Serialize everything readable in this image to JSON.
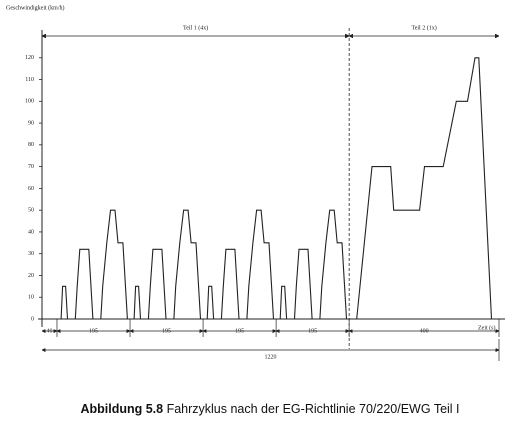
{
  "chart_data": {
    "type": "line",
    "y_label": "Geschwindigkeit (km/h)",
    "x_label": "Zeit (s)",
    "color": "#222222",
    "x": [
      0,
      40,
      51,
      55,
      63,
      68,
      89,
      94,
      101,
      125,
      136,
      157,
      162,
      173,
      183,
      195,
      203,
      216,
      228,
      235,
      246,
      250,
      258,
      263,
      284,
      289,
      296,
      320,
      331,
      352,
      357,
      368,
      378,
      390,
      398,
      411,
      423,
      430,
      441,
      445,
      453,
      458,
      479,
      484,
      491,
      515,
      526,
      547,
      552,
      563,
      573,
      585,
      593,
      606,
      618,
      625,
      636,
      640,
      648,
      653,
      674,
      679,
      686,
      710,
      721,
      742,
      747,
      758,
      768,
      780,
      788,
      801,
      813,
      820,
      840,
      881,
      931,
      939,
      1008,
      1021,
      1071,
      1106,
      1136,
      1156,
      1166,
      1200,
      1220
    ],
    "values": [
      0,
      0,
      0,
      15,
      15,
      0,
      0,
      15,
      32,
      32,
      0,
      0,
      15,
      35,
      50,
      50,
      35,
      35,
      0,
      0,
      0,
      15,
      15,
      0,
      0,
      15,
      32,
      32,
      0,
      0,
      15,
      35,
      50,
      50,
      35,
      35,
      0,
      0,
      0,
      15,
      15,
      0,
      0,
      15,
      32,
      32,
      0,
      0,
      15,
      35,
      50,
      50,
      35,
      35,
      0,
      0,
      0,
      15,
      15,
      0,
      0,
      15,
      32,
      32,
      0,
      0,
      15,
      35,
      50,
      50,
      35,
      35,
      0,
      0,
      0,
      70,
      70,
      50,
      50,
      70,
      70,
      100,
      100,
      120,
      120,
      0,
      0
    ],
    "xlim": [
      0,
      1220
    ],
    "ylim": [
      0,
      130
    ],
    "yticks": [
      0,
      10,
      20,
      30,
      40,
      50,
      60,
      70,
      80,
      90,
      100,
      110,
      120
    ],
    "phases": [
      {
        "name": "Teil 1 (4x)",
        "span": [
          0,
          820
        ]
      },
      {
        "name": "Teil 2 (1x)",
        "span": [
          820,
          1220
        ]
      }
    ],
    "segments": [
      40,
      195,
      195,
      195,
      195,
      400
    ],
    "total": 1220
  },
  "caption": {
    "label": "Abbildung 5.8",
    "text": "Fahrzyklus nach der EG-Richtlinie 70/220/EWG Teil I"
  }
}
